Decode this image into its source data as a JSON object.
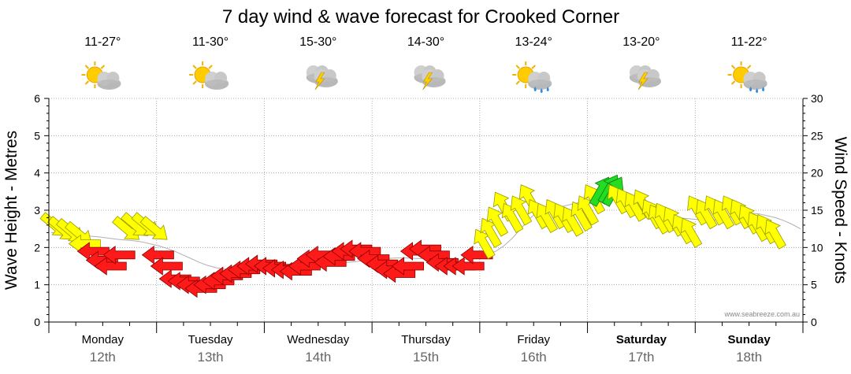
{
  "chart_data": {
    "type": "line",
    "title": "7 day wind & wave forecast for Crooked Corner",
    "ylabel_left": "Wave Height - Metres",
    "ylabel_right": "Wind Speed - Knots",
    "ylim_left": [
      0,
      6
    ],
    "yticks_left": [
      "0",
      "1",
      "2",
      "3",
      "4",
      "5",
      "6"
    ],
    "ylim_right": [
      0,
      30
    ],
    "yticks_right": [
      "0",
      "5",
      "10",
      "15",
      "20",
      "25",
      "30"
    ],
    "watermark": "www.seabreeze.com.au",
    "days": [
      {
        "name": "Monday",
        "date": "12th",
        "temp": "11-27°",
        "icon": "partly-cloudy-icon",
        "bold": false
      },
      {
        "name": "Tuesday",
        "date": "13th",
        "temp": "11-30°",
        "icon": "partly-cloudy-icon",
        "bold": false
      },
      {
        "name": "Wednesday",
        "date": "14th",
        "temp": "15-30°",
        "icon": "thunderstorm-icon",
        "bold": false
      },
      {
        "name": "Thursday",
        "date": "15th",
        "temp": "14-30°",
        "icon": "thunderstorm-icon",
        "bold": false
      },
      {
        "name": "Friday",
        "date": "16th",
        "temp": "13-24°",
        "icon": "rain-icon",
        "bold": false
      },
      {
        "name": "Saturday",
        "date": "17th",
        "temp": "13-20°",
        "icon": "thunderstorm-icon",
        "bold": true
      },
      {
        "name": "Sunday",
        "date": "18th",
        "temp": "11-22°",
        "icon": "showers-icon",
        "bold": true
      }
    ],
    "wave_series": {
      "name": "Wave height (m)",
      "values": [
        2.4,
        2.38,
        2.36,
        2.34,
        2.32,
        2.3,
        2.28,
        2.25,
        2.22,
        2.2,
        2.18,
        2.15,
        2.1,
        2.05,
        1.98,
        1.9,
        1.8,
        1.7,
        1.6,
        1.52,
        1.46,
        1.42,
        1.4,
        1.4,
        1.42,
        1.45,
        1.48,
        1.5,
        1.52,
        1.53,
        1.54,
        1.55,
        1.55,
        1.56,
        1.57,
        1.58,
        1.6,
        1.62,
        1.65,
        1.68,
        1.7,
        1.71,
        1.72,
        1.72,
        1.71,
        1.7,
        1.68,
        1.67,
        1.66,
        1.66,
        1.67,
        1.7,
        1.75,
        1.82,
        1.9,
        2.05,
        2.25,
        2.5,
        2.75,
        2.95,
        3.05,
        3.1,
        3.1,
        3.15,
        3.2,
        3.25,
        3.3,
        3.35,
        3.35,
        3.3,
        3.2,
        3.1,
        3.0,
        2.92,
        2.86,
        2.82,
        2.8,
        2.78,
        2.76,
        2.74,
        2.72,
        2.75,
        2.8,
        2.85,
        2.9,
        2.92,
        2.9,
        2.85,
        2.8,
        2.72,
        2.62,
        2.5
      ]
    },
    "wind_series": {
      "name": "Wind (knots) with direction",
      "points": [
        [
          0.05,
          13.0,
          "E",
          220
        ],
        [
          0.12,
          12.5,
          "E",
          220
        ],
        [
          0.2,
          12.2,
          "E",
          220
        ],
        [
          0.28,
          11.8,
          "E",
          220
        ],
        [
          0.34,
          10.5,
          "SE",
          0
        ],
        [
          0.42,
          9.5,
          "SE",
          0
        ],
        [
          0.5,
          8.3,
          "SE",
          0
        ],
        [
          0.58,
          7.5,
          "SE",
          0
        ],
        [
          0.66,
          9.0,
          "SE",
          0
        ],
        [
          0.72,
          12.5,
          "E",
          220
        ],
        [
          0.8,
          13.0,
          "E",
          220
        ],
        [
          0.9,
          13.0,
          "E",
          220
        ],
        [
          0.98,
          12.5,
          "E",
          220
        ],
        [
          1.02,
          9.0,
          "SE",
          0
        ],
        [
          1.1,
          7.5,
          "SE",
          0
        ],
        [
          1.18,
          5.8,
          "SW",
          0
        ],
        [
          1.26,
          5.5,
          "SW",
          0
        ],
        [
          1.34,
          5.0,
          "SW",
          0
        ],
        [
          1.42,
          4.5,
          "SW",
          0
        ],
        [
          1.5,
          5.0,
          "SW",
          0
        ],
        [
          1.58,
          5.5,
          "SW",
          0
        ],
        [
          1.66,
          6.2,
          "SW",
          0
        ],
        [
          1.74,
          6.5,
          "SW",
          0
        ],
        [
          1.82,
          7.0,
          "SW",
          0
        ],
        [
          1.9,
          7.5,
          "SW",
          0
        ],
        [
          1.98,
          7.8,
          "SW",
          0
        ],
        [
          2.06,
          7.5,
          "SW",
          0
        ],
        [
          2.14,
          7.2,
          "SW",
          0
        ],
        [
          2.22,
          7.0,
          "SW",
          0
        ],
        [
          2.3,
          6.8,
          "SW",
          0
        ],
        [
          2.38,
          7.5,
          "SW",
          0
        ],
        [
          2.46,
          8.5,
          "SW",
          0
        ],
        [
          2.54,
          9.0,
          "SW",
          0
        ],
        [
          2.62,
          8.0,
          "SW",
          0
        ],
        [
          2.7,
          8.8,
          "SW",
          0
        ],
        [
          2.78,
          9.5,
          "SW",
          0
        ],
        [
          2.86,
          9.8,
          "SW",
          0
        ],
        [
          2.94,
          9.5,
          "SE",
          0
        ],
        [
          3.02,
          8.5,
          "SE",
          0
        ],
        [
          3.1,
          7.8,
          "SE",
          0
        ],
        [
          3.18,
          7.0,
          "SE",
          0
        ],
        [
          3.26,
          6.5,
          "SE",
          0
        ],
        [
          3.34,
          7.5,
          "SE",
          0
        ],
        [
          3.42,
          9.5,
          "SE",
          0
        ],
        [
          3.5,
          9.8,
          "SE",
          0
        ],
        [
          3.58,
          9.0,
          "SE",
          0
        ],
        [
          3.66,
          8.0,
          "SE",
          0
        ],
        [
          3.74,
          7.5,
          "SE",
          0
        ],
        [
          3.82,
          7.5,
          "NW",
          0
        ],
        [
          3.9,
          7.5,
          "NW",
          0
        ],
        [
          3.98,
          9.0,
          "NW",
          0
        ],
        [
          4.04,
          10.5,
          "NE",
          60
        ],
        [
          4.1,
          12.0,
          "NE",
          60
        ],
        [
          4.16,
          13.5,
          "NE",
          60
        ],
        [
          4.22,
          15.5,
          "NE",
          60
        ],
        [
          4.3,
          14.0,
          "NE",
          60
        ],
        [
          4.38,
          15.0,
          "NE",
          60
        ],
        [
          4.46,
          16.5,
          "NE",
          60
        ],
        [
          4.54,
          14.5,
          "NE",
          60
        ],
        [
          4.62,
          14.0,
          "E",
          60
        ],
        [
          4.7,
          14.5,
          "E",
          60
        ],
        [
          4.78,
          14.0,
          "E",
          60
        ],
        [
          4.86,
          13.5,
          "E",
          60
        ],
        [
          4.94,
          14.2,
          "E",
          60
        ],
        [
          5.0,
          15.0,
          "E",
          60
        ],
        [
          5.06,
          16.5,
          "NE",
          60
        ],
        [
          5.12,
          17.5,
          "N",
          120
        ],
        [
          5.2,
          17.8,
          "N",
          120
        ],
        [
          5.24,
          17.5,
          "N",
          120
        ],
        [
          5.28,
          16.5,
          "NE",
          60
        ],
        [
          5.36,
          16.0,
          "NE",
          60
        ],
        [
          5.44,
          15.5,
          "NE",
          60
        ],
        [
          5.52,
          15.8,
          "NE",
          60
        ],
        [
          5.6,
          14.5,
          "E",
          60
        ],
        [
          5.66,
          13.8,
          "E",
          60
        ],
        [
          5.72,
          14.0,
          "E",
          60
        ],
        [
          5.8,
          13.5,
          "E",
          60
        ],
        [
          5.88,
          12.5,
          "E",
          60
        ],
        [
          5.96,
          12.0,
          "E",
          60
        ],
        [
          6.02,
          15.0,
          "E",
          60
        ],
        [
          6.1,
          14.5,
          "E",
          60
        ],
        [
          6.18,
          15.0,
          "E",
          60
        ],
        [
          6.26,
          14.5,
          "E",
          60
        ],
        [
          6.34,
          15.0,
          "E",
          60
        ],
        [
          6.42,
          14.5,
          "E",
          60
        ],
        [
          6.5,
          13.8,
          "E",
          60
        ],
        [
          6.58,
          12.8,
          "E",
          60
        ],
        [
          6.66,
          12.5,
          "E",
          60
        ],
        [
          6.74,
          11.8,
          "E",
          60
        ]
      ]
    }
  }
}
